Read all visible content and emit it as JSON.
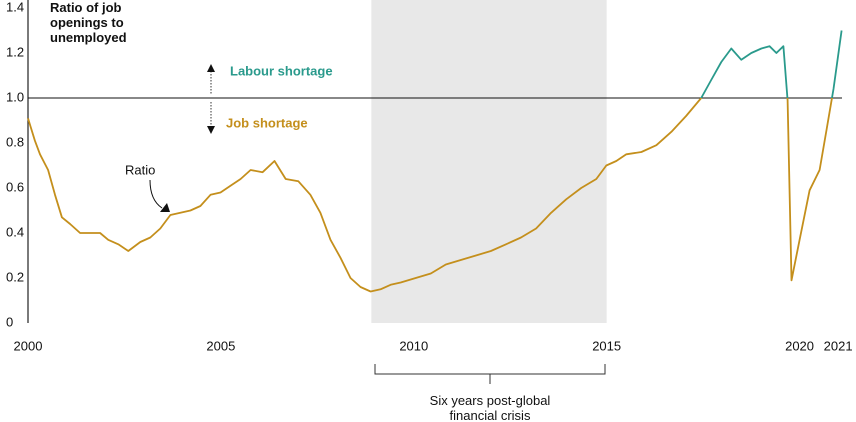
{
  "chart_data": {
    "type": "line",
    "y_label": "Ratio of job openings to unemployed",
    "x": [
      2000.0,
      2000.18,
      2000.31,
      2000.52,
      2000.7,
      2000.88,
      2001.09,
      2001.35,
      2001.61,
      2001.87,
      2002.08,
      2002.34,
      2002.6,
      2002.91,
      2003.17,
      2003.43,
      2003.69,
      2003.95,
      2004.21,
      2004.47,
      2004.73,
      2004.99,
      2005.25,
      2005.51,
      2005.77,
      2006.08,
      2006.39,
      2006.68,
      2007.01,
      2007.32,
      2007.58,
      2007.84,
      2008.1,
      2008.36,
      2008.62,
      2008.88,
      2009.14,
      2009.4,
      2009.66,
      2010.05,
      2010.44,
      2010.83,
      2011.22,
      2011.61,
      2012.0,
      2012.39,
      2012.78,
      2013.17,
      2013.56,
      2013.95,
      2014.34,
      2014.73,
      2014.99,
      2015.25,
      2015.51,
      2015.9,
      2016.29,
      2016.68,
      2017.06,
      2017.45,
      2017.71,
      2017.97,
      2018.23,
      2018.49,
      2018.75,
      2019.01,
      2019.22,
      2019.4,
      2019.58,
      2019.69,
      2019.79,
      2020.0,
      2020.26,
      2020.52,
      2020.7,
      2020.88,
      2021.09
    ],
    "series": [
      {
        "name": "Ratio",
        "color": "#c48f1c",
        "above_color": "#2a9a8c",
        "values": [
          0.91,
          0.81,
          0.75,
          0.68,
          0.57,
          0.47,
          0.44,
          0.4,
          0.4,
          0.4,
          0.37,
          0.35,
          0.32,
          0.36,
          0.38,
          0.42,
          0.48,
          0.49,
          0.5,
          0.52,
          0.57,
          0.58,
          0.61,
          0.64,
          0.68,
          0.67,
          0.72,
          0.64,
          0.63,
          0.57,
          0.49,
          0.37,
          0.29,
          0.2,
          0.16,
          0.14,
          0.15,
          0.17,
          0.18,
          0.2,
          0.22,
          0.26,
          0.28,
          0.3,
          0.32,
          0.35,
          0.38,
          0.42,
          0.49,
          0.55,
          0.6,
          0.64,
          0.7,
          0.72,
          0.75,
          0.76,
          0.79,
          0.85,
          0.92,
          1.0,
          1.08,
          1.16,
          1.22,
          1.17,
          1.2,
          1.22,
          1.23,
          1.2,
          1.23,
          0.99,
          0.19,
          0.37,
          0.59,
          0.68,
          0.86,
          1.04,
          1.3
        ]
      }
    ],
    "reference_line": 1,
    "xlim": [
      2000,
      2021.1
    ],
    "ylim": [
      0,
      1.4
    ],
    "xticks": [
      2000,
      2005,
      2010,
      2015,
      2020,
      2021
    ],
    "yticks": [
      0,
      0.2,
      0.4,
      0.6,
      0.8,
      {
        "value": 1,
        "label": "1.0"
      },
      1.2,
      1.4
    ],
    "shaded_span": [
      2008.9,
      2015
    ],
    "span_label": "Six years post-global financial crisis",
    "annotations": {
      "above": "Labour shortage",
      "below": "Job shortage",
      "series": "Ratio"
    }
  }
}
